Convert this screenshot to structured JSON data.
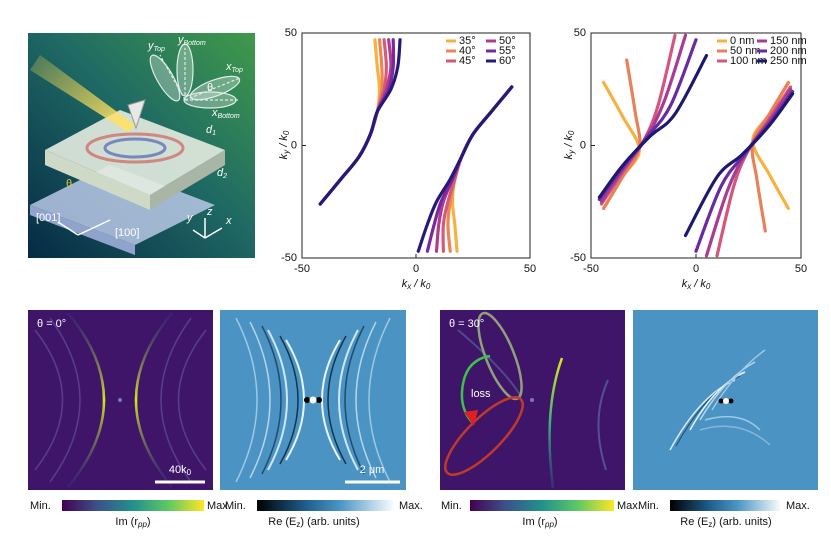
{
  "illustration": {
    "y_top": [
      "y",
      "Top"
    ],
    "y_bottom": [
      "y",
      "Bottom"
    ],
    "x_top": [
      "x",
      "Top"
    ],
    "x_bottom": [
      "x",
      "Bottom"
    ],
    "theta_top": "θ",
    "theta_side": "θ",
    "d1": [
      "d",
      "1"
    ],
    "d2": [
      "d",
      "2"
    ],
    "dir_001": "[001]",
    "dir_100": "[100]",
    "axis_y": "y",
    "axis_z": "z",
    "axis_x": "x"
  },
  "chart_data": [
    {
      "type": "line",
      "xlabel": [
        "k",
        "x",
        " / k",
        "0"
      ],
      "ylabel": [
        "k",
        "y",
        " / k",
        "0"
      ],
      "xlim": [
        -50,
        50
      ],
      "ylim": [
        -50,
        50
      ],
      "xticks": [
        -50,
        0,
        50
      ],
      "yticks": [
        -50,
        0,
        50
      ],
      "legend": "upper right",
      "series": [
        {
          "name": "35°",
          "color": "#f6b13f",
          "x": [
            -42,
            -33,
            -25,
            -20,
            -17,
            -16,
            -17,
            -18,
            null,
            42,
            33,
            25,
            20,
            17,
            16,
            17,
            18
          ],
          "y": [
            -26,
            -15,
            -5,
            5,
            15,
            25,
            35,
            47,
            null,
            26,
            15,
            5,
            -5,
            -15,
            -25,
            -35,
            -47
          ]
        },
        {
          "name": "40°",
          "color": "#ec8753",
          "x": [
            -42,
            -33,
            -25,
            -20,
            -17,
            -15,
            -15,
            -16,
            null,
            42,
            33,
            25,
            20,
            17,
            15,
            14,
            15
          ],
          "y": [
            -26,
            -15,
            -5,
            5,
            15,
            25,
            35,
            47,
            null,
            26,
            15,
            5,
            -5,
            -15,
            -25,
            -35,
            -47
          ]
        },
        {
          "name": "45°",
          "color": "#d65a78",
          "x": [
            -42,
            -33,
            -25,
            -20,
            -17,
            -14,
            -13,
            -14,
            null,
            42,
            33,
            25,
            20,
            17,
            14,
            12,
            12
          ],
          "y": [
            -26,
            -15,
            -5,
            5,
            15,
            25,
            35,
            47,
            null,
            26,
            15,
            5,
            -5,
            -15,
            -25,
            -35,
            -47
          ]
        },
        {
          "name": "50°",
          "color": "#b03c92",
          "x": [
            -42,
            -33,
            -25,
            -20,
            -17,
            -13,
            -11,
            -12,
            null,
            42,
            33,
            25,
            20,
            16,
            12,
            10,
            9
          ],
          "y": [
            -26,
            -15,
            -5,
            5,
            15,
            25,
            35,
            47,
            null,
            26,
            15,
            5,
            -5,
            -15,
            -25,
            -35,
            -47
          ]
        },
        {
          "name": "55°",
          "color": "#7a289e",
          "x": [
            -42,
            -33,
            -25,
            -20,
            -17,
            -12,
            -10,
            -10,
            null,
            42,
            33,
            25,
            20,
            16,
            11,
            8,
            5
          ],
          "y": [
            -26,
            -15,
            -5,
            5,
            15,
            25,
            35,
            47,
            null,
            26,
            15,
            5,
            -5,
            -15,
            -25,
            -35,
            -47
          ]
        },
        {
          "name": "60°",
          "color": "#25197a",
          "x": [
            -42,
            -33,
            -25,
            -20,
            -17,
            -11,
            -8,
            -7,
            null,
            42,
            33,
            25,
            20,
            15,
            9,
            5,
            1
          ],
          "y": [
            -26,
            -15,
            -5,
            5,
            15,
            25,
            35,
            47,
            null,
            26,
            15,
            5,
            -5,
            -15,
            -25,
            -35,
            -47
          ]
        }
      ]
    },
    {
      "type": "line",
      "xlabel": [
        "k",
        "x",
        " / k",
        "0"
      ],
      "ylabel": [
        "k",
        "y",
        " / k",
        "0"
      ],
      "xlim": [
        -50,
        50
      ],
      "ylim": [
        -50,
        50
      ],
      "xticks": [
        -50,
        0,
        50
      ],
      "yticks": [
        -50,
        0,
        50
      ],
      "legend": "upper right",
      "series": [
        {
          "name": "0 nm",
          "color": "#f6b13f",
          "x": [
            -44,
            -35,
            -27,
            -35,
            -44,
            null,
            44,
            35,
            27,
            35,
            44
          ],
          "y": [
            -28,
            -14,
            -2,
            13,
            28,
            null,
            28,
            14,
            2,
            -13,
            -28
          ]
        },
        {
          "name": "50 nm",
          "color": "#e8805a",
          "x": [
            -44,
            -35,
            -27,
            -29,
            -33,
            null,
            44,
            35,
            27,
            29,
            33
          ],
          "y": [
            -28,
            -14,
            -1,
            15,
            38,
            null,
            28,
            14,
            1,
            -15,
            -38
          ]
        },
        {
          "name": "100 nm",
          "color": "#d4567e",
          "x": [
            -45,
            -35,
            -25,
            -18,
            -10,
            null,
            45,
            35,
            25,
            18,
            10
          ],
          "y": [
            -26,
            -12,
            2,
            18,
            49,
            null,
            26,
            12,
            -2,
            -18,
            -49
          ]
        },
        {
          "name": "150 nm",
          "color": "#a83c95",
          "x": [
            -45,
            -35,
            -24,
            -15,
            -5,
            null,
            45,
            35,
            24,
            15,
            5
          ],
          "y": [
            -25,
            -11,
            3,
            20,
            49,
            null,
            25,
            11,
            -3,
            -20,
            -49
          ]
        },
        {
          "name": "200 nm",
          "color": "#6a2aa0",
          "x": [
            -46,
            -35,
            -23,
            -12,
            0,
            null,
            46,
            35,
            23,
            12,
            0
          ],
          "y": [
            -24,
            -10,
            4,
            18,
            47,
            null,
            24,
            10,
            -4,
            -18,
            -47
          ]
        },
        {
          "name": "250 nm",
          "color": "#1d1870",
          "x": [
            -46,
            -35,
            -22,
            -10,
            5,
            null,
            46,
            35,
            22,
            10,
            -5
          ],
          "y": [
            -23,
            -9,
            4,
            14,
            40,
            null,
            23,
            9,
            -4,
            -14,
            -40
          ]
        }
      ]
    }
  ],
  "maps": [
    {
      "annotation": "θ = 0°",
      "scale_bar": [
        "40k",
        "0"
      ],
      "colorbar_min": "Min.",
      "colorbar_max": "Max.",
      "colorbar_label": [
        "Im (r",
        "pp",
        ")"
      ]
    },
    {
      "scale_bar": "2 μm",
      "colorbar_min": "Min.",
      "colorbar_max": "Max.",
      "colorbar_label": [
        "Re (E",
        "z",
        ") (arb. units)"
      ]
    },
    {
      "annotation": "θ = 30°",
      "loss_label": "loss",
      "colorbar_min": "Min.",
      "colorbar_max": "Max.",
      "colorbar_label": [
        "Im (r",
        "pp",
        ")"
      ]
    },
    {
      "colorbar_min": "Min.",
      "colorbar_max": "Max.",
      "colorbar_label": [
        "Re (E",
        "z",
        ") (arb. units)"
      ]
    }
  ]
}
